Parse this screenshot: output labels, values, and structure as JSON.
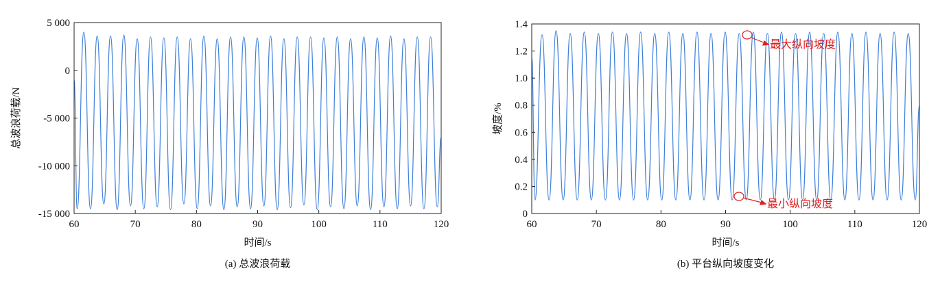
{
  "chart_data": [
    {
      "type": "line",
      "caption": "(a) 总波浪荷载",
      "xlabel": "时间/s",
      "ylabel": "总波浪荷载/N",
      "xlim": [
        60,
        120
      ],
      "xticks": [
        60,
        70,
        80,
        90,
        100,
        110,
        120
      ],
      "ylim": [
        -15000,
        5000
      ],
      "yticks": [
        {
          "value": -15000,
          "label": "-15 000"
        },
        {
          "value": -10000,
          "label": "-10 000"
        },
        {
          "value": -5000,
          "label": "-5 000"
        },
        0,
        {
          "value": 5000,
          "label": "5 000"
        }
      ],
      "smooth": true,
      "series": [
        {
          "color": "#3d7fdc",
          "x": [
            60,
            60.5,
            61.59,
            62.68,
            63.77,
            64.86,
            65.95,
            67.04,
            68.13,
            69.22,
            70.31,
            71.4,
            72.49,
            73.58,
            74.67,
            75.76,
            76.85,
            77.94,
            79.03,
            80.12,
            81.21,
            82.3,
            83.39,
            84.48,
            85.57,
            86.66,
            87.75,
            88.84,
            89.93,
            91.02,
            92.11,
            93.2,
            94.29,
            95.38,
            96.47,
            97.56,
            98.65,
            99.74,
            100.83,
            101.92,
            103.01,
            104.1,
            105.19,
            106.28,
            107.37,
            108.46,
            109.55,
            110.64,
            111.73,
            112.82,
            113.91,
            115,
            116.09,
            117.18,
            118.27,
            119.36,
            120
          ],
          "values": [
            -1000,
            -14500,
            4000,
            -14500,
            3600,
            -14000,
            3600,
            -14600,
            3700,
            -14200,
            3300,
            -14500,
            3500,
            -14300,
            3400,
            -14600,
            3500,
            -14000,
            3300,
            -14500,
            3600,
            -14200,
            3300,
            -14600,
            3500,
            -14300,
            3500,
            -14500,
            3400,
            -14200,
            3600,
            -14600,
            3300,
            -14400,
            3500,
            -14100,
            3500,
            -14600,
            3400,
            -14300,
            3500,
            -14500,
            3300,
            -14200,
            3500,
            -14600,
            3400,
            -14300,
            3600,
            -14500,
            3300,
            -14200,
            3500,
            -14500,
            3500,
            -14300,
            -7000
          ]
        }
      ]
    },
    {
      "type": "line",
      "caption": "(b) 平台纵向坡度变化",
      "xlabel": "时间/s",
      "ylabel": "坡度/%",
      "xlim": [
        60,
        120
      ],
      "xticks": [
        60,
        70,
        80,
        90,
        100,
        110,
        120
      ],
      "ylim": [
        0,
        1.4
      ],
      "yticks": [
        0,
        0.2,
        0.4,
        0.6,
        0.8,
        {
          "value": 1,
          "label": "1.0"
        },
        1.2,
        1.4
      ],
      "smooth": true,
      "annotations": [
        "最大纵向坡度",
        "最小纵向坡度"
      ],
      "series": [
        {
          "color": "#3d7fdc",
          "x": [
            60,
            60.5,
            61.59,
            62.68,
            63.77,
            64.86,
            65.95,
            67.04,
            68.13,
            69.22,
            70.31,
            71.4,
            72.49,
            73.58,
            74.67,
            75.76,
            76.85,
            77.94,
            79.03,
            80.12,
            81.21,
            82.3,
            83.39,
            84.48,
            85.57,
            86.66,
            87.75,
            88.84,
            89.93,
            91.02,
            92.11,
            93.2,
            94.29,
            95.38,
            96.47,
            97.56,
            98.65,
            99.74,
            100.83,
            101.92,
            103.01,
            104.1,
            105.19,
            106.28,
            107.37,
            108.46,
            109.55,
            110.64,
            111.73,
            112.82,
            113.91,
            115,
            116.09,
            117.18,
            118.27,
            119.36,
            120
          ],
          "values": [
            1.15,
            0.1,
            1.32,
            0.1,
            1.35,
            0.1,
            1.33,
            0.1,
            1.34,
            0.1,
            1.33,
            0.1,
            1.34,
            0.1,
            1.33,
            0.1,
            1.34,
            0.1,
            1.33,
            0.1,
            1.34,
            0.1,
            1.33,
            0.1,
            1.34,
            0.1,
            1.33,
            0.1,
            1.34,
            0.1,
            1.33,
            0.1,
            1.34,
            0.1,
            1.33,
            0.1,
            1.34,
            0.1,
            1.33,
            0.1,
            1.34,
            0.1,
            1.33,
            0.1,
            1.34,
            0.1,
            1.33,
            0.1,
            1.34,
            0.1,
            1.33,
            0.1,
            1.34,
            0.1,
            1.33,
            0.1,
            0.8
          ]
        }
      ]
    }
  ]
}
